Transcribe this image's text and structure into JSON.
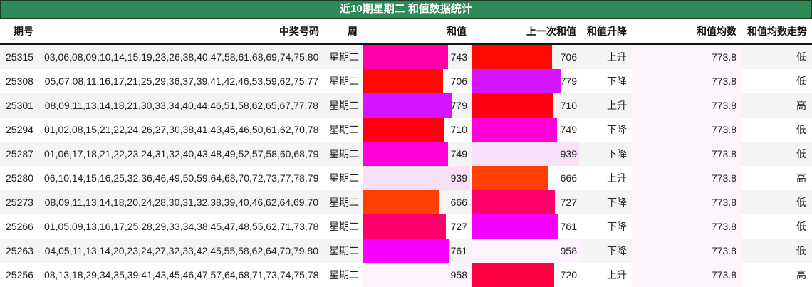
{
  "title": "近10期星期二 和值数据统计",
  "headers": {
    "issue": "期号",
    "numbers": "中奖号码",
    "week": "周",
    "sum": "和值",
    "prev_sum": "上一次和值",
    "direction": "和值升降",
    "avg": "和值均数",
    "avg_trend": "和值均数走势"
  },
  "rows": [
    {
      "issue": "25315",
      "numbers": "03,06,08,09,10,14,15,19,23,26,38,40,47,58,61,68,69,74,75,80",
      "week": "星期二",
      "sum": "743",
      "sum_color": "#ff00aa",
      "sum_bar": 120,
      "prev_sum": "706",
      "prev_color": "#ff0a00",
      "prev_bar": 113,
      "direction": "上升",
      "avg": "773.8",
      "trend": "低"
    },
    {
      "issue": "25308",
      "numbers": "05,07,08,11,16,17,21,25,29,36,37,39,41,42,46,53,59,62,75,77",
      "week": "星期二",
      "sum": "706",
      "sum_color": "#ff0a00",
      "sum_bar": 113,
      "prev_sum": "779",
      "prev_color": "#d515ff",
      "prev_bar": 125,
      "direction": "下降",
      "avg": "773.8",
      "trend": "低"
    },
    {
      "issue": "25301",
      "numbers": "08,09,11,13,14,18,21,30,33,34,40,44,46,51,58,62,65,67,77,78",
      "week": "星期二",
      "sum": "779",
      "sum_color": "#d515ff",
      "sum_bar": 125,
      "prev_sum": "710",
      "prev_color": "#ff0012",
      "prev_bar": 114,
      "direction": "上升",
      "avg": "773.8",
      "trend": "高"
    },
    {
      "issue": "25294",
      "numbers": "01,02,08,15,21,22,24,26,27,30,38,41,43,45,46,50,61,62,70,78",
      "week": "星期二",
      "sum": "710",
      "sum_color": "#ff0012",
      "sum_bar": 114,
      "prev_sum": "749",
      "prev_color": "#ff00d8",
      "prev_bar": 120,
      "direction": "下降",
      "avg": "773.8",
      "trend": "低"
    },
    {
      "issue": "25287",
      "numbers": "01,06,17,18,21,22,23,24,31,32,40,43,48,49,52,57,58,60,68,79",
      "week": "星期二",
      "sum": "749",
      "sum_color": "#ff00d8",
      "sum_bar": 120,
      "prev_sum": "939",
      "prev_color": "#f8e0f8",
      "prev_bar": 151,
      "direction": "下降",
      "avg": "773.8",
      "trend": "低"
    },
    {
      "issue": "25280",
      "numbers": "06,10,14,15,16,25,32,36,46,49,50,59,64,68,70,72,73,77,78,79",
      "week": "星期二",
      "sum": "939",
      "sum_color": "#f8e0f8",
      "sum_bar": 151,
      "prev_sum": "666",
      "prev_color": "#ff4000",
      "prev_bar": 107,
      "direction": "上升",
      "avg": "773.8",
      "trend": "高"
    },
    {
      "issue": "25273",
      "numbers": "08,09,11,13,14,18,20,24,28,30,31,32,38,39,40,46,62,64,69,70",
      "week": "星期二",
      "sum": "666",
      "sum_color": "#ff4000",
      "sum_bar": 107,
      "prev_sum": "727",
      "prev_color": "#ff006a",
      "prev_bar": 117,
      "direction": "下降",
      "avg": "773.8",
      "trend": "低"
    },
    {
      "issue": "25266",
      "numbers": "01,05,09,13,16,17,25,28,29,33,34,38,45,47,48,55,62,71,73,78",
      "week": "星期二",
      "sum": "727",
      "sum_color": "#ff006a",
      "sum_bar": 117,
      "prev_sum": "761",
      "prev_color": "#f500ff",
      "prev_bar": 122,
      "direction": "下降",
      "avg": "773.8",
      "trend": "低"
    },
    {
      "issue": "25263",
      "numbers": "04,05,11,13,14,20,23,24,27,32,33,42,45,55,58,62,64,70,79,80",
      "week": "星期二",
      "sum": "761",
      "sum_color": "#f500ff",
      "sum_bar": 122,
      "prev_sum": "958",
      "prev_color": "#fcf3fc",
      "prev_bar": 153,
      "direction": "下降",
      "avg": "773.8",
      "trend": "低"
    },
    {
      "issue": "25256",
      "numbers": "08,13,18,29,34,35,39,41,43,45,46,47,57,64,68,71,73,74,75,78",
      "week": "星期二",
      "sum": "958",
      "sum_color": "#fcf3fc",
      "sum_bar": 153,
      "prev_sum": "720",
      "prev_color": "#ff0040",
      "prev_bar": 116,
      "direction": "上升",
      "avg": "773.8",
      "trend": "高"
    }
  ]
}
